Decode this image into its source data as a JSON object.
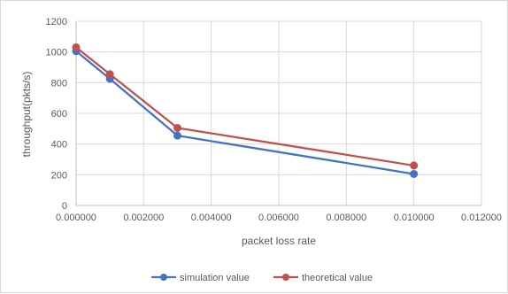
{
  "chart_data": {
    "type": "line",
    "title": "",
    "xlabel": "packet loss rate",
    "ylabel": "throughput(pkts/s)",
    "xlim": [
      0,
      0.012
    ],
    "ylim": [
      0,
      1200
    ],
    "x_ticks": [
      0,
      0.002,
      0.004,
      0.006,
      0.008,
      0.01,
      0.012
    ],
    "x_tick_labels": [
      "0.000000",
      "0.002000",
      "0.004000",
      "0.006000",
      "0.008000",
      "0.010000",
      "0.012000"
    ],
    "y_ticks": [
      0,
      200,
      400,
      600,
      800,
      1000,
      1200
    ],
    "y_tick_labels": [
      "0",
      "200",
      "400",
      "600",
      "800",
      "1000",
      "1200"
    ],
    "grid": "vertical and horizontal major gridlines",
    "legend_position": "bottom",
    "series": [
      {
        "name": "simulation value",
        "color": "#4472c4",
        "points": [
          {
            "x": 0,
            "y": 1005
          },
          {
            "x": 0.001,
            "y": 825
          },
          {
            "x": 0.003,
            "y": 455
          },
          {
            "x": 0.01,
            "y": 205
          }
        ]
      },
      {
        "name": "theoretical value",
        "color": "#c0504d",
        "points": [
          {
            "x": 0,
            "y": 1030
          },
          {
            "x": 0.001,
            "y": 855
          },
          {
            "x": 0.003,
            "y": 505
          },
          {
            "x": 0.01,
            "y": 260
          }
        ]
      }
    ]
  }
}
